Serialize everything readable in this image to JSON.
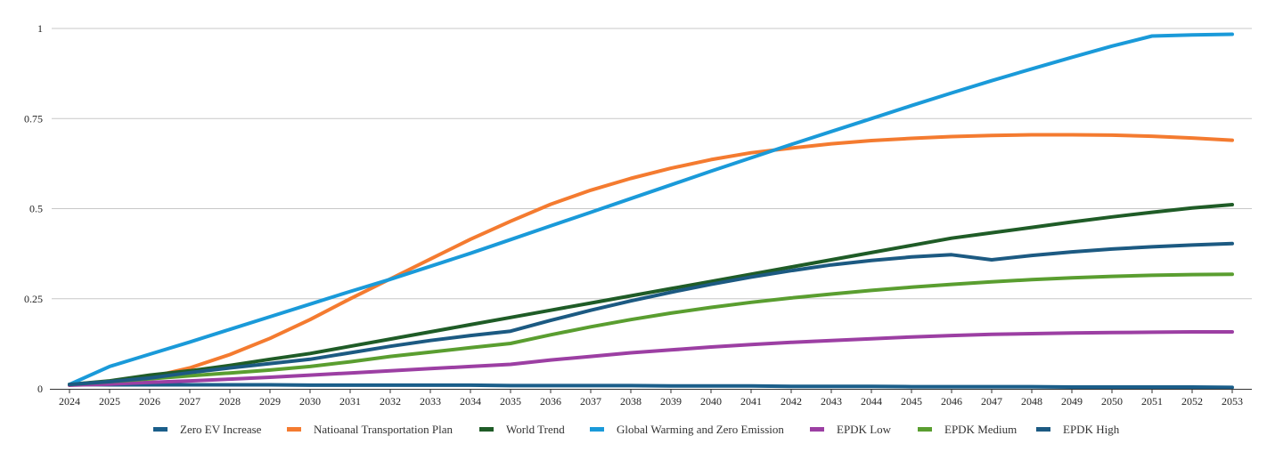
{
  "chart_data": {
    "type": "line",
    "title": "",
    "xlabel": "",
    "ylabel": "",
    "ylim": [
      0,
      1
    ],
    "yticks": [
      0,
      0.25,
      0.5,
      0.75,
      1
    ],
    "ytick_labels": [
      "0",
      "0.25",
      "0.5",
      "0.75",
      "1"
    ],
    "grid": "horizontal",
    "legend_position": "bottom",
    "x": [
      "2024",
      "2025",
      "2026",
      "2027",
      "2028",
      "2029",
      "2030",
      "2031",
      "2032",
      "2033",
      "2034",
      "2035",
      "2036",
      "2037",
      "2038",
      "2039",
      "2040",
      "2041",
      "2042",
      "2043",
      "2044",
      "2045",
      "2046",
      "2047",
      "2048",
      "2049",
      "2050",
      "2051",
      "2052",
      "2053"
    ],
    "series": [
      {
        "name": "Zero EV Increase",
        "color": "#1a5e8a",
        "values": [
          0.012,
          0.011,
          0.011,
          0.011,
          0.011,
          0.011,
          0.01,
          0.01,
          0.01,
          0.01,
          0.01,
          0.009,
          0.009,
          0.009,
          0.009,
          0.008,
          0.008,
          0.008,
          0.007,
          0.007,
          0.007,
          0.006,
          0.006,
          0.006,
          0.006,
          0.005,
          0.005,
          0.005,
          0.005,
          0.004
        ]
      },
      {
        "name": "Natioanal  Transportation Plan",
        "color": "#f47b30",
        "values": [
          0.01,
          0.018,
          0.032,
          0.058,
          0.095,
          0.14,
          0.192,
          0.25,
          0.305,
          0.36,
          0.415,
          0.465,
          0.512,
          0.551,
          0.584,
          0.612,
          0.636,
          0.655,
          0.668,
          0.68,
          0.689,
          0.695,
          0.7,
          0.703,
          0.705,
          0.705,
          0.704,
          0.701,
          0.696,
          0.69
        ]
      },
      {
        "name": "World Trend",
        "color": "#1f5c27",
        "values": [
          0.012,
          0.022,
          0.038,
          0.05,
          0.065,
          0.082,
          0.098,
          0.118,
          0.138,
          0.158,
          0.178,
          0.198,
          0.218,
          0.238,
          0.258,
          0.278,
          0.298,
          0.318,
          0.338,
          0.358,
          0.378,
          0.398,
          0.418,
          0.433,
          0.448,
          0.463,
          0.477,
          0.49,
          0.502,
          0.511
        ]
      },
      {
        "name": "Global Warming  and Zero Emission",
        "color": "#1a9ad9",
        "values": [
          0.012,
          0.062,
          0.096,
          0.13,
          0.165,
          0.2,
          0.235,
          0.27,
          0.304,
          0.34,
          0.376,
          0.414,
          0.452,
          0.49,
          0.528,
          0.566,
          0.604,
          0.641,
          0.678,
          0.714,
          0.75,
          0.786,
          0.821,
          0.855,
          0.888,
          0.92,
          0.951,
          0.979,
          0.982,
          0.984
        ]
      },
      {
        "name": "EPDK Low",
        "color": "#9c3fa3",
        "values": [
          0.01,
          0.013,
          0.018,
          0.022,
          0.027,
          0.032,
          0.038,
          0.044,
          0.05,
          0.056,
          0.062,
          0.068,
          0.08,
          0.09,
          0.1,
          0.108,
          0.116,
          0.123,
          0.129,
          0.134,
          0.139,
          0.144,
          0.148,
          0.151,
          0.153,
          0.155,
          0.156,
          0.157,
          0.158,
          0.158
        ]
      },
      {
        "name": "EPDK Medium",
        "color": "#5a9e30",
        "values": [
          0.012,
          0.02,
          0.028,
          0.036,
          0.044,
          0.052,
          0.062,
          0.075,
          0.09,
          0.102,
          0.114,
          0.126,
          0.15,
          0.172,
          0.192,
          0.21,
          0.226,
          0.24,
          0.252,
          0.263,
          0.273,
          0.282,
          0.29,
          0.297,
          0.303,
          0.308,
          0.312,
          0.315,
          0.317,
          0.318
        ]
      },
      {
        "name": "EPDK High",
        "color": "#1c5a82",
        "values": [
          0.012,
          0.02,
          0.03,
          0.045,
          0.058,
          0.07,
          0.082,
          0.1,
          0.118,
          0.134,
          0.148,
          0.16,
          0.19,
          0.218,
          0.244,
          0.268,
          0.29,
          0.31,
          0.328,
          0.344,
          0.356,
          0.366,
          0.372,
          0.358,
          0.37,
          0.38,
          0.388,
          0.394,
          0.399,
          0.403
        ]
      }
    ]
  }
}
